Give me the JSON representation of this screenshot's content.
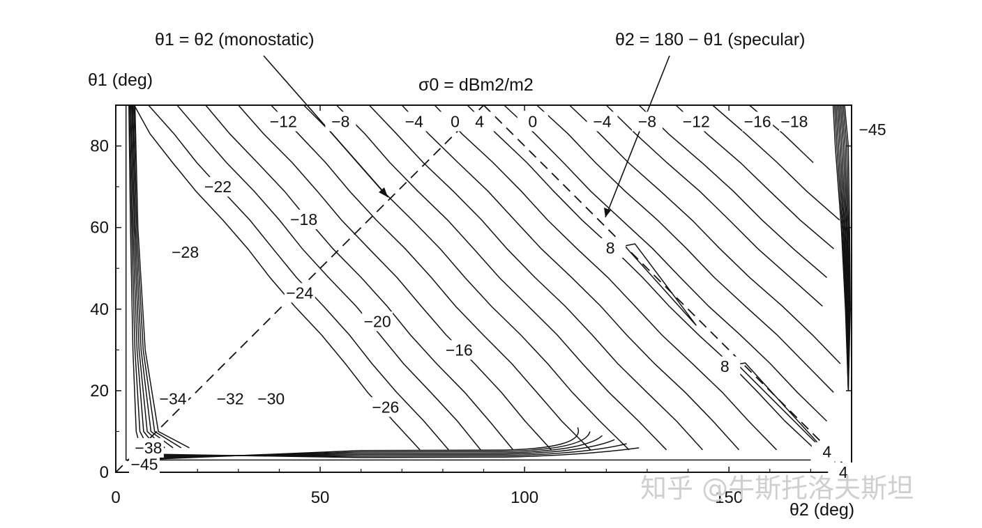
{
  "chart_data": {
    "type": "contour",
    "title": "σ0 = dBm2/m2",
    "annotations": {
      "monostatic": "θ1 = θ2 (monostatic)",
      "specular": "θ2 = 180 − θ1 (specular)"
    },
    "xlabel": "θ2 (deg)",
    "ylabel": "θ1 (deg)",
    "xlim": [
      0,
      180
    ],
    "ylim": [
      0,
      90
    ],
    "xticks": [
      0,
      50,
      100,
      150
    ],
    "yticks": [
      0,
      20,
      40,
      60,
      80
    ],
    "grid": false,
    "reference_lines": [
      {
        "name": "monostatic",
        "equation": "θ1 = θ2",
        "style": "dashed"
      },
      {
        "name": "specular",
        "equation": "θ2 = 180 − θ1",
        "style": "dashed"
      }
    ],
    "contour_labels": [
      {
        "text": "−12",
        "x": 41,
        "y": 86
      },
      {
        "text": "−8",
        "x": 55,
        "y": 86
      },
      {
        "text": "−4",
        "x": 73,
        "y": 86
      },
      {
        "text": "0",
        "x": 83,
        "y": 86
      },
      {
        "text": "4",
        "x": 89,
        "y": 86
      },
      {
        "text": "0",
        "x": 102,
        "y": 86
      },
      {
        "text": "−4",
        "x": 119,
        "y": 86
      },
      {
        "text": "−8",
        "x": 130,
        "y": 86
      },
      {
        "text": "−12",
        "x": 142,
        "y": 86
      },
      {
        "text": "−16",
        "x": 157,
        "y": 86
      },
      {
        "text": "−18",
        "x": 166,
        "y": 86
      },
      {
        "text": "−45",
        "x": 188,
        "y": 84
      },
      {
        "text": "−22",
        "x": 25,
        "y": 70
      },
      {
        "text": "−18",
        "x": 46,
        "y": 62
      },
      {
        "text": "−28",
        "x": 17,
        "y": 54
      },
      {
        "text": "−24",
        "x": 45,
        "y": 44
      },
      {
        "text": "−20",
        "x": 64,
        "y": 37
      },
      {
        "text": "−16",
        "x": 84,
        "y": 30
      },
      {
        "text": "8",
        "x": 121,
        "y": 55
      },
      {
        "text": "8",
        "x": 149,
        "y": 26
      },
      {
        "text": "−34",
        "x": 14,
        "y": 18
      },
      {
        "text": "−32",
        "x": 28,
        "y": 18
      },
      {
        "text": "−30",
        "x": 38,
        "y": 18
      },
      {
        "text": "−26",
        "x": 66,
        "y": 16
      },
      {
        "text": "4",
        "x": 174,
        "y": 5
      },
      {
        "text": "4",
        "x": 178,
        "y": 0
      },
      {
        "text": "−38",
        "x": 8,
        "y": 6
      },
      {
        "text": "−45",
        "x": 7,
        "y": 2
      }
    ]
  },
  "watermark": "知乎 @牛斯托洛夫斯坦"
}
